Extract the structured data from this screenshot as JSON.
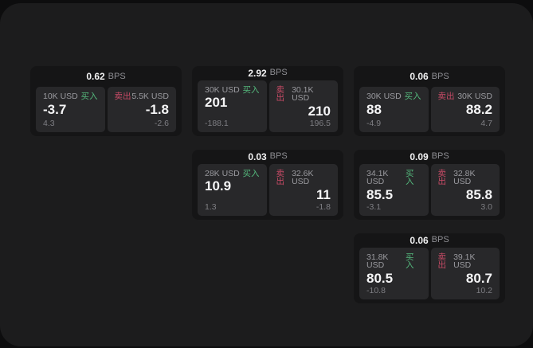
{
  "labels": {
    "bps_unit": "BPS",
    "buy": "买入",
    "sell": "卖出"
  },
  "colors": {
    "backdrop": "#0d0d0e",
    "surface": "#1c1c1d",
    "card": "#151516",
    "panel": "#28282a",
    "buy_green": "#54b87c",
    "sell_red": "#c94b66",
    "value_white": "#f5f5f6",
    "muted_gray": "#9a9a9f"
  },
  "cards": [
    {
      "bps": "0.62",
      "buy": {
        "amount": "10K USD",
        "value": "-3.7",
        "delta": "4.3"
      },
      "sell": {
        "amount": "5.5K USD",
        "value": "-1.8",
        "delta": "-2.6"
      }
    },
    {
      "bps": "2.92",
      "buy": {
        "amount": "30K USD",
        "value": "201",
        "delta": "-188.1"
      },
      "sell": {
        "amount": "30.1K USD",
        "value": "210",
        "delta": "196.5"
      }
    },
    {
      "bps": "0.06",
      "buy": {
        "amount": "30K USD",
        "value": "88",
        "delta": "-4.9"
      },
      "sell": {
        "amount": "30K USD",
        "value": "88.2",
        "delta": "4.7"
      }
    },
    {
      "bps": "0.03",
      "buy": {
        "amount": "28K USD",
        "value": "10.9",
        "delta": "1.3"
      },
      "sell": {
        "amount": "32.6K USD",
        "value": "11",
        "delta": "-1.8"
      }
    },
    {
      "bps": "0.09",
      "buy": {
        "amount": "34.1K USD",
        "value": "85.5",
        "delta": "-3.1"
      },
      "sell": {
        "amount": "32.8K USD",
        "value": "85.8",
        "delta": "3.0"
      }
    },
    {
      "bps": "0.06",
      "buy": {
        "amount": "31.8K USD",
        "value": "80.5",
        "delta": "-10.8"
      },
      "sell": {
        "amount": "39.1K USD",
        "value": "80.7",
        "delta": "10.2"
      }
    }
  ]
}
